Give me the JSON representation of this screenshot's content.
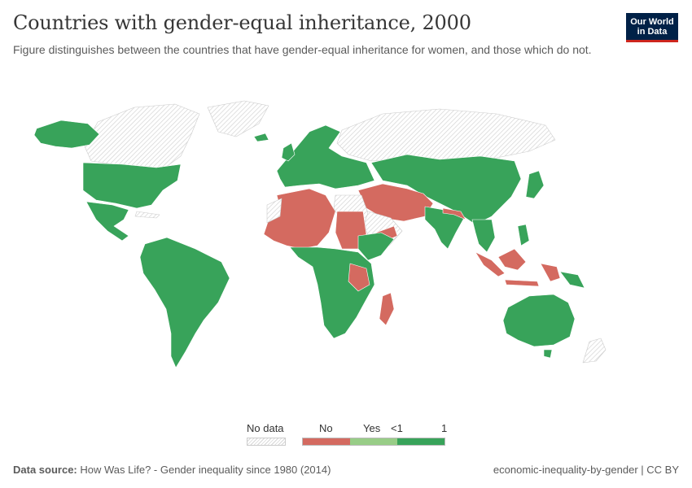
{
  "header": {
    "title": "Countries with gender-equal inheritance, 2000",
    "subtitle": "Figure distinguishes between the countries that have gender-equal inheritance for women, and those which do not.",
    "logo_line1": "Our World",
    "logo_line2": "in Data"
  },
  "legend": {
    "no_data_label": "No data",
    "labels": [
      "No",
      "Yes",
      "<1",
      "1"
    ],
    "colors": {
      "no": "#d46a60",
      "yes": "#98cd87",
      "one": "#38a35a",
      "no_data": "#e5e5e5"
    }
  },
  "map": {
    "regions": [
      {
        "name": "Canada",
        "status": "no_data"
      },
      {
        "name": "Greenland",
        "status": "no_data"
      },
      {
        "name": "Alaska",
        "status": "yes"
      },
      {
        "name": "United States",
        "status": "yes"
      },
      {
        "name": "Mexico",
        "status": "yes"
      },
      {
        "name": "South America",
        "status": "yes"
      },
      {
        "name": "Europe",
        "status": "yes"
      },
      {
        "name": "Russia",
        "status": "no_data"
      },
      {
        "name": "North Africa",
        "status": "no"
      },
      {
        "name": "Sudan",
        "status": "no"
      },
      {
        "name": "Middle East",
        "status": "no"
      },
      {
        "name": "South Asia",
        "status": "yes"
      },
      {
        "name": "China",
        "status": "yes"
      },
      {
        "name": "Southern Africa",
        "status": "yes"
      },
      {
        "name": "Madagascar",
        "status": "no"
      },
      {
        "name": "Indonesia",
        "status": "no"
      },
      {
        "name": "Australia",
        "status": "yes"
      }
    ]
  },
  "footer": {
    "source_label": "Data source:",
    "source_text": "How Was Life? - Gender inequality since 1980 (2014)",
    "right_text": "economic-inequality-by-gender | CC BY"
  }
}
